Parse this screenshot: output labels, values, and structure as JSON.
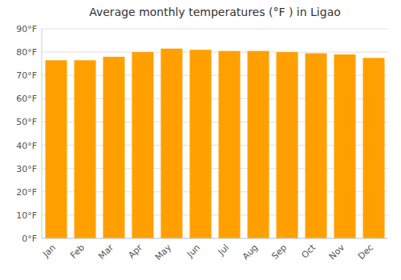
{
  "chart_data": {
    "type": "bar",
    "title": "Average monthly temperatures (°F ) in Ligao",
    "categories": [
      "Jan",
      "Feb",
      "Mar",
      "Apr",
      "May",
      "Jun",
      "Jul",
      "Aug",
      "Sep",
      "Oct",
      "Nov",
      "Dec"
    ],
    "values": [
      76.5,
      76.5,
      78.0,
      80.0,
      81.5,
      81.0,
      80.5,
      80.5,
      80.0,
      79.5,
      79.0,
      77.5
    ],
    "color": "#FFA000",
    "ylim": [
      0,
      90
    ],
    "yticks": [
      {
        "value": 0,
        "label": "0°F"
      },
      {
        "value": 10,
        "label": "10°F"
      },
      {
        "value": 20,
        "label": "20°F"
      },
      {
        "value": 30,
        "label": "30°F"
      },
      {
        "value": 40,
        "label": "40°F"
      },
      {
        "value": 50,
        "label": "50°F"
      },
      {
        "value": 60,
        "label": "60°F"
      },
      {
        "value": 70,
        "label": "70°F"
      },
      {
        "value": 80,
        "label": "80°F"
      },
      {
        "value": 90,
        "label": "90°F"
      }
    ],
    "grid": true
  }
}
